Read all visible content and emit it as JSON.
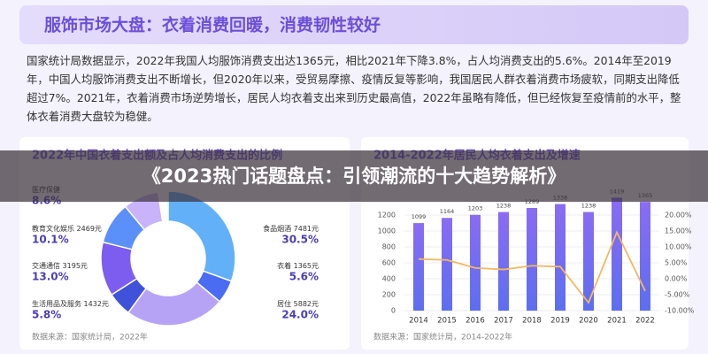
{
  "header": {
    "title": "服饰市场大盘：衣着消费回暖，消费韧性较好"
  },
  "body_text": "国家统计局数据显示，2022年我国人均服饰消费支出达1365元，相比2021年下降3.8%，占人均消费支出的5.6%。2014年至2019年，中国人均服饰消费支出不断增长，但2020年以来，受贸易摩擦、疫情反复等影响，我国居民人群衣着消费市场疲软，同期支出降低超过7%。2021年，衣着消费市场逆势增长，居民人均衣着支出来到历史最高值，2022年虽略有降低，但已经恢复至疫情前的水平，整体衣着消费大盘较为稳健。",
  "banner": {
    "text": "《2023热门话题盘点：引领潮流的十大趋势解析》"
  },
  "chart_data": [
    {
      "type": "donut",
      "title": "2022年中国衣着支出额及占人均消费支出的比例",
      "categories": [
        "食品烟酒",
        "衣着",
        "居住",
        "生活用品及服务",
        "交通通信",
        "教育文化娱乐",
        "医疗保健"
      ],
      "amounts": [
        "7481元",
        "1365元",
        "5882元",
        "1432元",
        "3195元",
        "2469元",
        null
      ],
      "values": [
        30.5,
        5.6,
        24.0,
        5.8,
        13.0,
        10.1,
        8.6
      ],
      "value_labels": [
        "30.5%",
        "5.6%",
        "24.0%",
        "5.8%",
        "13.0%",
        "10.1%",
        "8.6%"
      ],
      "colors": [
        "#62b0f7",
        "#4a6cf2",
        "#b7a3f6",
        "#3f52d9",
        "#7d5cf0",
        "#5b8ff9",
        "#c9b3fa"
      ],
      "source": "数据来源：国家统计局，2022年"
    },
    {
      "type": "bar_line",
      "title": "2014-2022年居民人均衣着支出及增速",
      "categories": [
        "2014",
        "2015",
        "2016",
        "2017",
        "2018",
        "2019",
        "2020",
        "2021",
        "2022"
      ],
      "series": [
        {
          "name": "人均衣着支出",
          "color": "#7c5cf0",
          "values": [
            1099,
            1164,
            1203,
            1238,
            1289,
            1338,
            1238,
            1419,
            1365
          ]
        },
        {
          "name": "增速",
          "color": "#f4b860",
          "axis": "y2",
          "values": [
            6.2,
            5.9,
            3.4,
            2.9,
            4.1,
            3.8,
            -7.5,
            14.6,
            -3.8
          ]
        }
      ],
      "ylim": [
        0,
        1400
      ],
      "yticks": [
        0,
        200,
        400,
        600,
        800,
        1000,
        1200
      ],
      "y2lim": [
        -10,
        25
      ],
      "y2ticks": [
        {
          "value": 20,
          "label": "20.00%"
        },
        {
          "value": 15,
          "label": "15.00%"
        },
        {
          "value": 10,
          "label": "10.00%"
        },
        {
          "value": 5,
          "label": "5.00%"
        },
        {
          "value": 0,
          "label": "0.00%"
        },
        {
          "value": -5,
          "label": "-5.00%"
        },
        {
          "value": -10,
          "label": "-10.00%"
        }
      ],
      "source": "数据来源：国家统计局，2014-2022年"
    }
  ]
}
